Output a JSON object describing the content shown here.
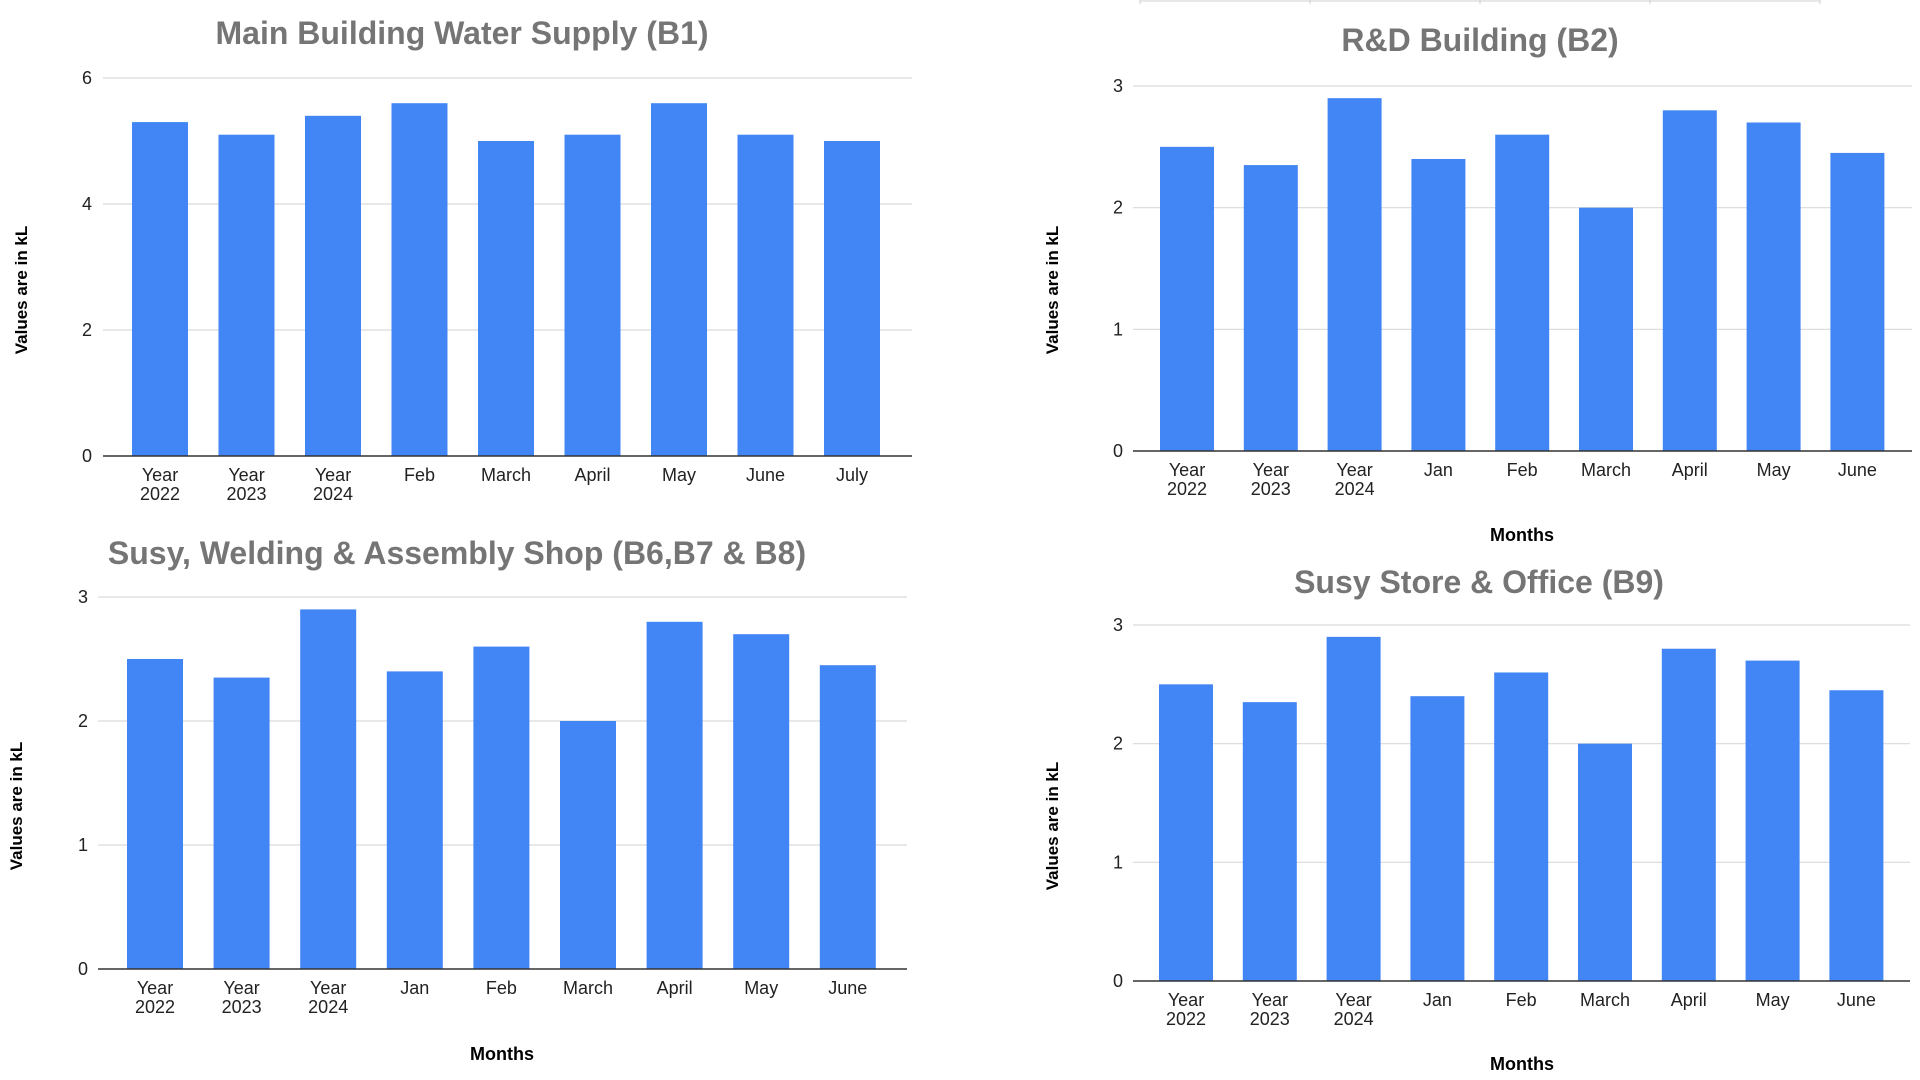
{
  "page": {
    "bar_color": "#4285f4",
    "title_color": "#757575",
    "grid_color": "#d9d9d9"
  },
  "chart_data": [
    {
      "type": "bar",
      "title": "Main Building Water Supply (B1)",
      "ylabel": "Values are in kL",
      "xlabel": "",
      "ylim": [
        0,
        6
      ],
      "yticks": [
        0,
        2,
        4,
        6
      ],
      "categories": [
        "Year 2022",
        "Year 2023",
        "Year 2024",
        "Feb",
        "March",
        "April",
        "May",
        "June",
        "July"
      ],
      "values": [
        5.3,
        5.1,
        5.4,
        5.6,
        5.0,
        5.1,
        5.6,
        5.1,
        5.0
      ],
      "grid": true,
      "legend": "none"
    },
    {
      "type": "bar",
      "title": "R&D Building (B2)",
      "ylabel": "Values are in kL",
      "xlabel": "Months",
      "ylim": [
        0,
        3
      ],
      "yticks": [
        0,
        1,
        2,
        3
      ],
      "categories": [
        "Year 2022",
        "Year 2023",
        "Year 2024",
        "Jan",
        "Feb",
        "March",
        "April",
        "May",
        "June"
      ],
      "values": [
        2.5,
        2.35,
        2.9,
        2.4,
        2.6,
        2.0,
        2.8,
        2.7,
        2.45
      ],
      "grid": true,
      "legend": "none"
    },
    {
      "type": "bar",
      "title": "Susy, Welding & Assembly Shop (B6,B7 & B8)",
      "ylabel": "Values are in kL",
      "xlabel": "Months",
      "ylim": [
        0,
        3
      ],
      "yticks": [
        0,
        1,
        2,
        3
      ],
      "categories": [
        "Year 2022",
        "Year 2023",
        "Year 2024",
        "Jan",
        "Feb",
        "March",
        "April",
        "May",
        "June"
      ],
      "values": [
        2.5,
        2.35,
        2.9,
        2.4,
        2.6,
        2.0,
        2.8,
        2.7,
        2.45
      ],
      "grid": true,
      "legend": "none"
    },
    {
      "type": "bar",
      "title": "Susy Store & Office (B9)",
      "ylabel": "Values are in kL",
      "xlabel": "Months",
      "ylim": [
        0,
        3
      ],
      "yticks": [
        0,
        1,
        2,
        3
      ],
      "categories": [
        "Year 2022",
        "Year 2023",
        "Year 2024",
        "Jan",
        "Feb",
        "March",
        "April",
        "May",
        "June"
      ],
      "values": [
        2.5,
        2.35,
        2.9,
        2.4,
        2.6,
        2.0,
        2.8,
        2.7,
        2.45
      ],
      "grid": true,
      "legend": "none"
    }
  ]
}
